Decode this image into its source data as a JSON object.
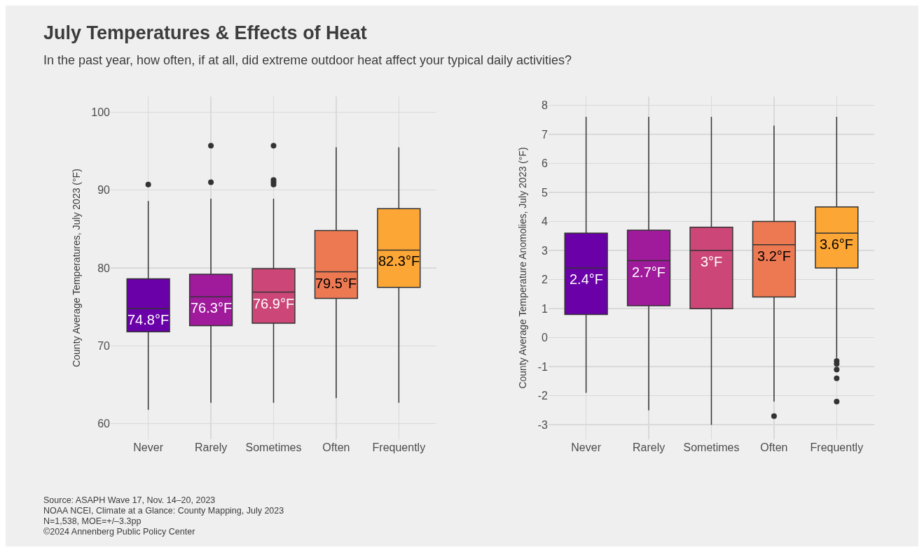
{
  "chart_data": [
    {
      "type": "box",
      "title": "July Temperatures & Effects of Heat",
      "subtitle": "In the past year, how often, if at all, did extreme outdoor heat affect your typical daily activities?",
      "ylabel": "County Average Temperatures, July 2023 (°F)",
      "categories": [
        "Never",
        "Rarely",
        "Sometimes",
        "Often",
        "Frequently"
      ],
      "colors": [
        "#6a00a8",
        "#a01a9c",
        "#cc4778",
        "#ed7953",
        "#fca636"
      ],
      "boxes": [
        {
          "low": 61.8,
          "q1": 71.8,
          "median": 74.8,
          "q3": 78.6,
          "high": 88.6,
          "outliers": [
            90.7
          ]
        },
        {
          "low": 62.7,
          "q1": 72.6,
          "median": 76.3,
          "q3": 79.2,
          "high": 88.9,
          "outliers": [
            91.0,
            95.7
          ]
        },
        {
          "low": 62.7,
          "q1": 72.9,
          "median": 76.9,
          "q3": 79.9,
          "high": 88.9,
          "outliers": [
            90.7,
            91.0,
            91.3,
            95.7
          ]
        },
        {
          "low": 63.3,
          "q1": 76.1,
          "median": 79.5,
          "q3": 84.8,
          "high": 95.5
        },
        {
          "low": 62.7,
          "q1": 77.5,
          "median": 82.3,
          "q3": 87.6,
          "high": 95.5
        }
      ],
      "value_labels": [
        "74.8°F",
        "76.3°F",
        "76.9°F",
        "79.5°F",
        "82.3°F"
      ],
      "ylim": [
        58,
        102
      ],
      "yticks": [
        60,
        70,
        80,
        90,
        100
      ],
      "grid": true,
      "annotations": [
        "Source: ASAPH Wave 17, Nov. 14–20, 2023",
        "NOAA NCEI, Climate at a Glance: County Mapping, July 2023",
        "N=1,538, MOE=+/–3.3pp",
        "©2024 Annenberg Public Policy Center"
      ]
    },
    {
      "type": "box",
      "ylabel": "County Average Temperature Anomolies, July 2023 (°F)",
      "categories": [
        "Never",
        "Rarely",
        "Sometimes",
        "Often",
        "Frequently"
      ],
      "colors": [
        "#6a00a8",
        "#a01a9c",
        "#cc4778",
        "#ed7953",
        "#fca636"
      ],
      "boxes": [
        {
          "low": -1.9,
          "q1": 0.8,
          "median": 2.4,
          "q3": 3.6,
          "high": 7.6
        },
        {
          "low": -2.5,
          "q1": 1.1,
          "median": 2.65,
          "q3": 3.7,
          "high": 7.6
        },
        {
          "low": -3.0,
          "q1": 1.0,
          "median": 3.0,
          "q3": 3.8,
          "high": 7.6
        },
        {
          "low": -2.2,
          "q1": 1.4,
          "median": 3.2,
          "q3": 4.0,
          "high": 7.3,
          "outliers": [
            -2.7
          ]
        },
        {
          "low": -0.7,
          "q1": 2.4,
          "median": 3.6,
          "q3": 4.5,
          "high": 7.6,
          "outliers": [
            -0.8,
            -0.9,
            -1.1,
            -1.4,
            -2.2
          ]
        }
      ],
      "value_labels": [
        "2.4°F",
        "2.7°F",
        "3°F",
        "3.2°F",
        "3.6°F"
      ],
      "ylim": [
        -3.5,
        8.3
      ],
      "yticks": [
        -3,
        -2,
        -1,
        0,
        1,
        2,
        3,
        4,
        5,
        6,
        7,
        8
      ],
      "grid": true
    }
  ]
}
